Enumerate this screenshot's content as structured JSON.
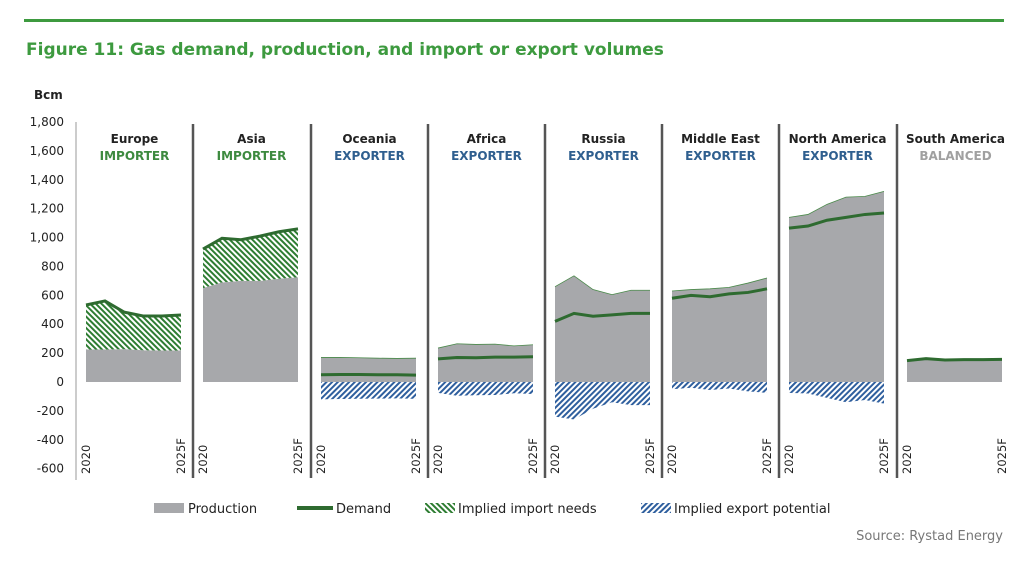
{
  "title": "Figure 11: Gas demand, production, and import or export volumes",
  "source": "Source: Rystad Energy",
  "colors": {
    "accent": "#3d9a3f",
    "production": "#a7a8ab",
    "demand": "#2e6b30",
    "import": "#2e7d32",
    "export": "#2f5f9e",
    "importer": "#3d8a3f",
    "exporter": "#2f5f8f",
    "balanced": "#a0a0a0"
  },
  "chart_data": {
    "type": "area",
    "ylabel": "Bcm",
    "ylim": [
      -600,
      1800
    ],
    "yticks": [
      "1,800",
      "1,600",
      "1,400",
      "1,200",
      "1,000",
      "800",
      "600",
      "400",
      "200",
      "0",
      "-200",
      "-400",
      "-600"
    ],
    "ytick_values": [
      1800,
      1600,
      1400,
      1200,
      1000,
      800,
      600,
      400,
      200,
      0,
      -200,
      -400,
      -600
    ],
    "x": [
      "2020",
      "2021",
      "2022",
      "2023",
      "2024",
      "2025F"
    ],
    "x_tick_labels": [
      "2020",
      "2025F"
    ],
    "legend": [
      "Production",
      "Demand",
      "Implied import needs",
      "Implied export potential"
    ],
    "legend_placement": "bottom",
    "grid": false,
    "panels": [
      {
        "region": "Europe",
        "status": "IMPORTER",
        "production": [
          225,
          225,
          228,
          220,
          218,
          218
        ],
        "demand": [
          533,
          561,
          484,
          457,
          457,
          464
        ]
      },
      {
        "region": "Asia",
        "status": "IMPORTER",
        "production": [
          650,
          690,
          700,
          700,
          715,
          725
        ],
        "demand": [
          920,
          995,
          985,
          1010,
          1040,
          1060
        ]
      },
      {
        "region": "Oceania",
        "status": "EXPORTER",
        "production": [
          170,
          170,
          168,
          165,
          163,
          165
        ],
        "demand": [
          50,
          52,
          52,
          50,
          50,
          48
        ]
      },
      {
        "region": "Africa",
        "status": "EXPORTER",
        "production": [
          235,
          265,
          260,
          262,
          250,
          258
        ],
        "demand": [
          160,
          170,
          168,
          172,
          172,
          175
        ]
      },
      {
        "region": "Russia",
        "status": "EXPORTER",
        "production": [
          660,
          735,
          640,
          605,
          635,
          635
        ],
        "demand": [
          420,
          475,
          455,
          465,
          475,
          475
        ]
      },
      {
        "region": "Middle East",
        "status": "EXPORTER",
        "production": [
          630,
          640,
          645,
          655,
          685,
          720
        ],
        "demand": [
          580,
          600,
          590,
          610,
          620,
          645
        ]
      },
      {
        "region": "North America",
        "status": "EXPORTER",
        "production": [
          1140,
          1160,
          1230,
          1280,
          1285,
          1320
        ],
        "demand": [
          1065,
          1080,
          1120,
          1140,
          1160,
          1170
        ]
      },
      {
        "region": "South America",
        "status": "BALANCED",
        "production": [
          145,
          160,
          150,
          152,
          152,
          155
        ],
        "demand": [
          148,
          162,
          152,
          155,
          155,
          157
        ]
      }
    ]
  }
}
